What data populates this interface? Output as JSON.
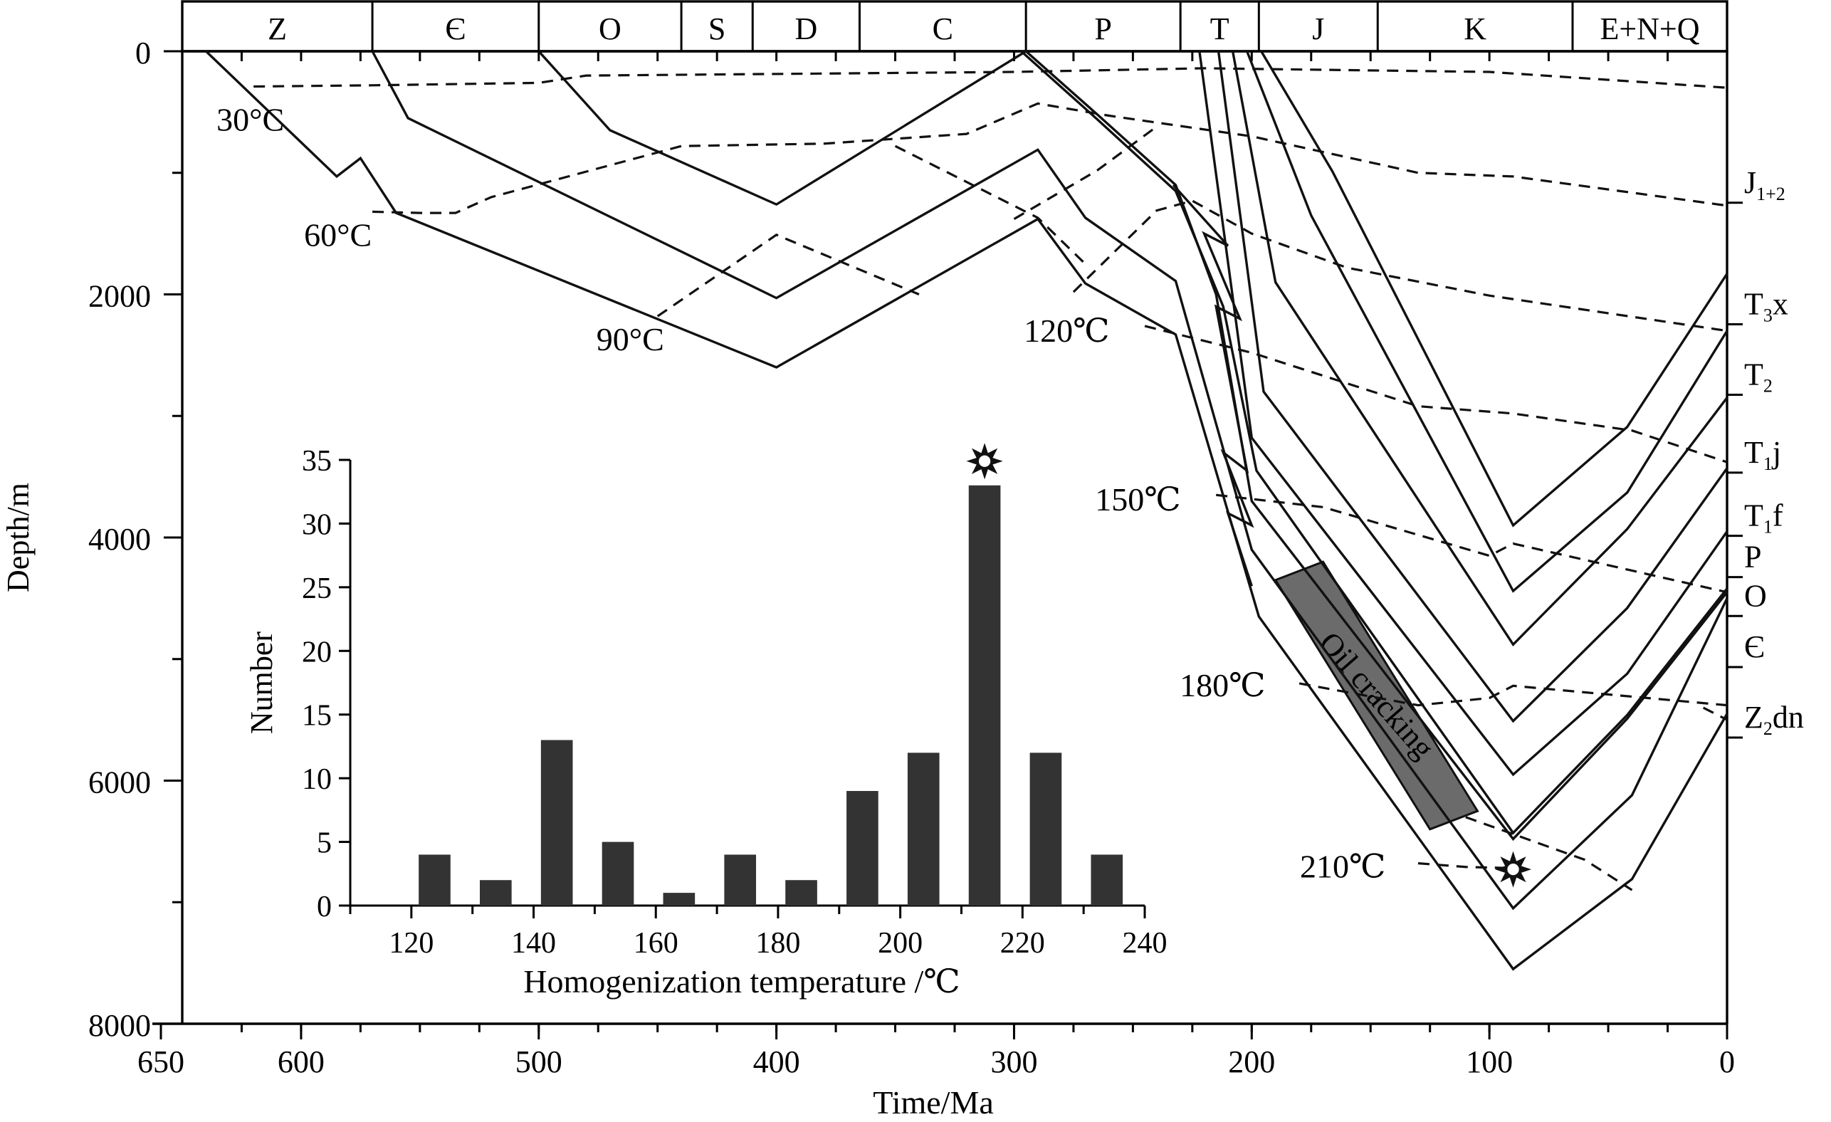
{
  "chart_data": [
    {
      "type": "line",
      "title": "",
      "xlabel": "Time/Ma",
      "ylabel": "Depth/m",
      "xlim": [
        650,
        0
      ],
      "ylim": [
        0,
        8000
      ],
      "x_ticks": [
        650,
        600,
        500,
        400,
        300,
        200,
        100,
        0
      ],
      "x_minor_step": 25,
      "y_ticks": [
        0,
        2000,
        4000,
        6000,
        8000
      ],
      "grid": false,
      "periods": [
        {
          "label": "Z",
          "start": 650,
          "end": 570
        },
        {
          "label": "Є",
          "start": 570,
          "end": 500
        },
        {
          "label": "O",
          "start": 500,
          "end": 440
        },
        {
          "label": "S",
          "start": 440,
          "end": 410
        },
        {
          "label": "D",
          "start": 410,
          "end": 365
        },
        {
          "label": "C",
          "start": 365,
          "end": 295
        },
        {
          "label": "P",
          "start": 295,
          "end": 230
        },
        {
          "label": "T",
          "start": 230,
          "end": 197
        },
        {
          "label": "J",
          "start": 197,
          "end": 147
        },
        {
          "label": "K",
          "start": 147,
          "end": 65
        },
        {
          "label": "E+N+Q",
          "start": 65,
          "end": 0
        }
      ],
      "strata_labels": [
        {
          "label": "J",
          "sub": "1+2",
          "depth": 1000
        },
        {
          "label": "T",
          "sub": "3",
          "after": "x",
          "depth": 2000
        },
        {
          "label": "T",
          "sub": "2",
          "depth": 2580
        },
        {
          "label": "T",
          "sub": "1",
          "after": "j",
          "depth": 3220
        },
        {
          "label": "T",
          "sub": "1",
          "after": "f",
          "depth": 3740
        },
        {
          "label": "P",
          "depth": 4080
        },
        {
          "label": "O",
          "depth": 4400
        },
        {
          "label": "Є",
          "depth": 4820
        },
        {
          "label": "Z",
          "sub": "2",
          "after": "dn",
          "depth": 5400
        }
      ],
      "burial_curves": [
        {
          "points": [
            [
              640,
              0
            ],
            [
              585,
              1030
            ],
            [
              575,
              880
            ],
            [
              560,
              1330
            ],
            [
              400,
              2600
            ],
            [
              290,
              1380
            ],
            [
              270,
              1910
            ],
            [
              232,
              2330
            ],
            [
              197,
              4650
            ],
            [
              90,
              7550
            ],
            [
              40,
              6810
            ],
            [
              0,
              5450
            ]
          ]
        },
        {
          "points": [
            [
              570,
              0
            ],
            [
              555,
              550
            ],
            [
              400,
              2030
            ],
            [
              290,
              810
            ],
            [
              270,
              1370
            ],
            [
              232,
              1890
            ],
            [
              200,
              4100
            ],
            [
              90,
              7050
            ],
            [
              40,
              6120
            ],
            [
              0,
              4500
            ]
          ]
        },
        {
          "points": [
            [
              500,
              0
            ],
            [
              470,
              650
            ],
            [
              400,
              1260
            ],
            [
              295,
              0
            ],
            [
              265,
              520
            ],
            [
              232,
              1100
            ],
            [
              215,
              2000
            ],
            [
              200,
              3700
            ],
            [
              90,
              6480
            ],
            [
              42,
              5490
            ],
            [
              0,
              4450
            ]
          ]
        },
        {
          "points": [
            [
              297,
              0
            ],
            [
              265,
              560
            ],
            [
              232,
              1150
            ],
            [
              212,
              2100
            ],
            [
              198,
              3450
            ],
            [
              90,
              6430
            ],
            [
              42,
              5460
            ],
            [
              0,
              4420
            ]
          ]
        },
        {
          "points": [
            [
              222,
              0
            ],
            [
              200,
              3180
            ],
            [
              90,
              5950
            ],
            [
              42,
              5120
            ],
            [
              0,
              3950
            ]
          ]
        },
        {
          "points": [
            [
              214,
              0
            ],
            [
              195,
              2800
            ],
            [
              90,
              5510
            ],
            [
              42,
              4580
            ],
            [
              0,
              3430
            ]
          ]
        },
        {
          "points": [
            [
              208,
              0
            ],
            [
              190,
              1900
            ],
            [
              90,
              4880
            ],
            [
              42,
              3930
            ],
            [
              0,
              2850
            ]
          ]
        },
        {
          "points": [
            [
              202,
              0
            ],
            [
              175,
              1350
            ],
            [
              90,
              4440
            ],
            [
              42,
              3630
            ],
            [
              0,
              2300
            ]
          ]
        },
        {
          "points": [
            [
              196,
              0
            ],
            [
              166,
              990
            ],
            [
              90,
              3900
            ],
            [
              42,
              3090
            ],
            [
              0,
              1830
            ]
          ]
        }
      ],
      "isotherms": [
        {
          "label": "30°C",
          "points": [
            [
              620,
              290
            ],
            [
              570,
              280
            ],
            [
              500,
              260
            ],
            [
              480,
              200
            ],
            [
              300,
              170
            ],
            [
              220,
              140
            ],
            [
              100,
              170
            ],
            [
              0,
              300
            ]
          ]
        },
        {
          "label": "60°C",
          "points": [
            [
              570,
              1320
            ],
            [
              550,
              1330
            ],
            [
              535,
              1330
            ],
            [
              520,
              1200
            ],
            [
              440,
              780
            ],
            [
              380,
              760
            ],
            [
              320,
              680
            ],
            [
              290,
              430
            ],
            [
              260,
              530
            ],
            [
              200,
              700
            ],
            [
              130,
              1000
            ],
            [
              90,
              1030
            ],
            [
              0,
              1270
            ]
          ]
        },
        {
          "label": "90°C",
          "points": [
            [
              450,
              2180
            ],
            [
              400,
              1510
            ],
            [
              340,
              2000
            ]
          ]
        },
        {
          "label": "",
          "points": [
            [
              300,
              1380
            ],
            [
              265,
              980
            ],
            [
              240,
              620
            ]
          ]
        },
        {
          "label": "",
          "points": [
            [
              350,
              780
            ],
            [
              290,
              1370
            ],
            [
              270,
              1750
            ]
          ]
        },
        {
          "label": "",
          "points": [
            [
              275,
              1980
            ],
            [
              240,
              1310
            ],
            [
              225,
              1230
            ],
            [
              200,
              1500
            ],
            [
              160,
              1780
            ],
            [
              100,
              2010
            ],
            [
              0,
              2300
            ]
          ]
        },
        {
          "label": "120℃",
          "points": [
            [
              245,
              2260
            ],
            [
              200,
              2480
            ],
            [
              130,
              2920
            ],
            [
              90,
              2980
            ],
            [
              40,
              3120
            ],
            [
              0,
              3380
            ]
          ]
        },
        {
          "label": "150℃",
          "points": [
            [
              215,
              3650
            ],
            [
              170,
              3750
            ],
            [
              100,
              4150
            ],
            [
              90,
              4050
            ],
            [
              0,
              4450
            ]
          ]
        },
        {
          "label": "180℃",
          "points": [
            [
              180,
              5200
            ],
            [
              130,
              5380
            ],
            [
              100,
              5320
            ],
            [
              90,
              5220
            ],
            [
              0,
              5380
            ]
          ]
        },
        {
          "label": "",
          "points": [
            [
              110,
              6300
            ],
            [
              60,
              6650
            ],
            [
              40,
              6900
            ]
          ]
        },
        {
          "label": "",
          "points": [
            [
              10,
              5400
            ],
            [
              0,
              5500
            ]
          ]
        },
        {
          "label": "210℃",
          "points": [
            [
              130,
              6680
            ],
            [
              110,
              6710
            ],
            [
              90,
              6720
            ]
          ]
        }
      ],
      "zigzag_segment": {
        "points": [
          [
            233,
            1100
          ],
          [
            210,
            1600
          ],
          [
            220,
            1500
          ],
          [
            205,
            2200
          ],
          [
            215,
            2100
          ],
          [
            202,
            3450
          ],
          [
            212,
            3300
          ],
          [
            200,
            3900
          ],
          [
            210,
            3800
          ],
          [
            200,
            4400
          ]
        ]
      },
      "annotation": {
        "label": "Oil cracking",
        "polygon": [
          [
            190,
            4350
          ],
          [
            170,
            4200
          ],
          [
            105,
            6250
          ],
          [
            125,
            6400
          ]
        ]
      },
      "marker": {
        "x": 90,
        "depth": 6730
      }
    },
    {
      "type": "bar",
      "title": "",
      "xlabel": "Homogenization temperature /℃",
      "ylabel": "Number",
      "xlim": [
        110,
        240
      ],
      "ylim": [
        0,
        35
      ],
      "x_ticks": [
        120,
        140,
        160,
        180,
        200,
        220,
        240
      ],
      "y_ticks": [
        0,
        5,
        10,
        15,
        20,
        25,
        30,
        35
      ],
      "bin_width": 10,
      "bin_starts": [
        120,
        130,
        140,
        150,
        160,
        170,
        180,
        190,
        200,
        210,
        220,
        230
      ],
      "values": [
        4,
        2,
        13,
        5,
        1,
        4,
        2,
        9,
        12,
        33,
        12,
        4
      ],
      "peak_marker_bin": 210
    }
  ],
  "colors": {
    "line": "#111111",
    "bar": "#333333",
    "annotation_fill": "#6b6b6b",
    "marker": "#111111"
  }
}
